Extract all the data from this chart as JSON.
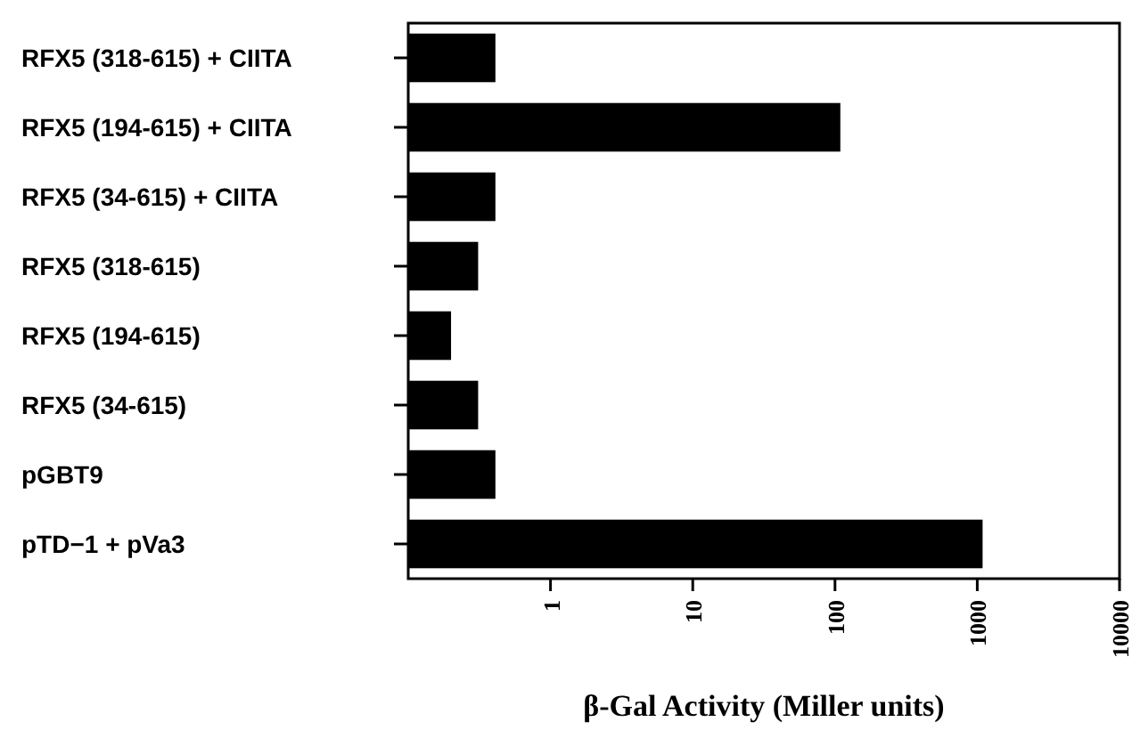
{
  "chart_data": {
    "type": "bar",
    "orientation": "horizontal",
    "log": "x",
    "xlabel": "β-Gal Activity (Miller units)",
    "categories": [
      "RFX5 (318-615) + CIITA",
      "RFX5 (194-615) + CIITA",
      "RFX5 (34-615) + CIITA",
      "RFX5 (318-615)",
      "RFX5 (194-615)",
      "RFX5 (34-615)",
      "pGBT9",
      "pTD−1 + pVa3"
    ],
    "values": [
      0.41,
      109,
      0.41,
      0.31,
      0.2,
      0.31,
      0.41,
      1090
    ],
    "color": "#000000",
    "xlim": [
      0.1,
      10000
    ],
    "xticks": [
      1,
      10,
      100,
      1000,
      10000
    ],
    "grid": false
  }
}
